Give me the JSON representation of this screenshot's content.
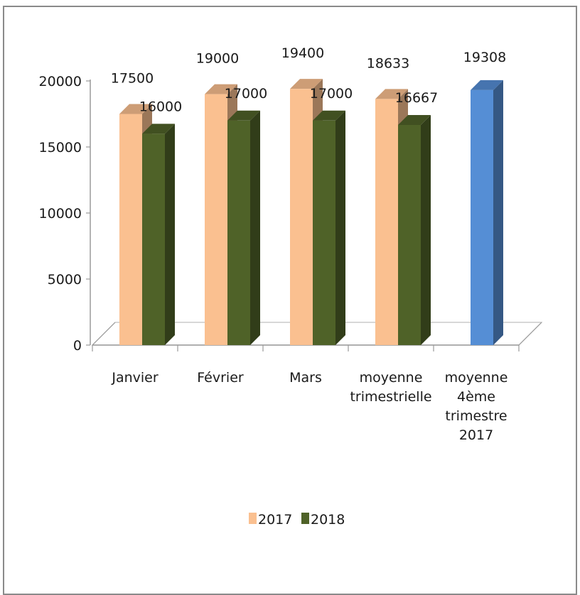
{
  "chart_data": {
    "type": "bar",
    "title": "",
    "xlabel": "",
    "ylabel": "",
    "ylim": [
      0,
      20000
    ],
    "yticks": [
      0,
      5000,
      10000,
      15000,
      20000
    ],
    "categories": [
      [
        "Janvier"
      ],
      [
        "Février"
      ],
      [
        "Mars"
      ],
      [
        "moyenne",
        "trimestrielle"
      ],
      [
        "moyenne",
        "4ème",
        "trimestre",
        "2017"
      ]
    ],
    "series": [
      {
        "name": "2017",
        "color": "#FAC090",
        "values": [
          17500,
          19000,
          19400,
          18633,
          null
        ],
        "labels": [
          "17500",
          "19000",
          "19400",
          "18633",
          ""
        ]
      },
      {
        "name": "2018",
        "color": "#4F6228",
        "values": [
          16000,
          17000,
          17000,
          16667,
          null
        ],
        "labels": [
          "16000",
          "17000",
          "17000",
          "16667",
          ""
        ]
      },
      {
        "name": "",
        "color": "#558ED5",
        "values": [
          null,
          null,
          null,
          null,
          19308
        ],
        "labels": [
          "",
          "",
          "",
          "",
          "19308"
        ]
      }
    ],
    "legend": {
      "placement": "bottom",
      "entries": [
        {
          "label": "2017",
          "color": "#FAC090"
        },
        {
          "label": "2018",
          "color": "#4F6228"
        }
      ]
    },
    "grid": false,
    "style": "3d-column"
  }
}
